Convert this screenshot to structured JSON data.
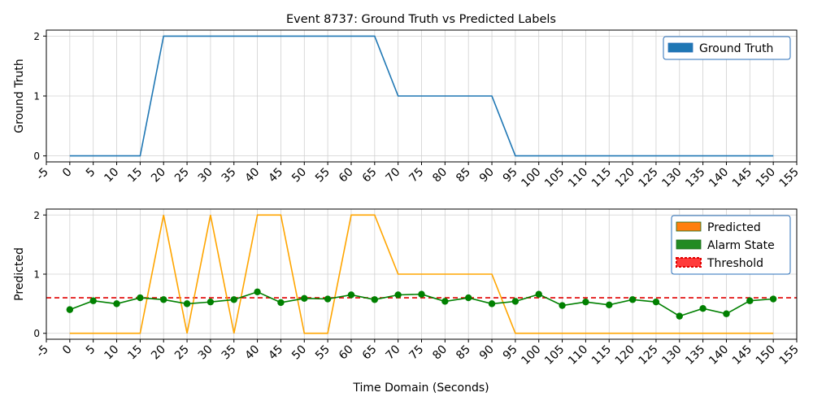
{
  "chart_data": [
    {
      "type": "line",
      "title": "Event 8737: Ground Truth vs Predicted Labels",
      "xlabel": "",
      "ylabel": "Ground Truth",
      "xlim": [
        -5,
        155
      ],
      "ylim": [
        -0.1,
        2.1
      ],
      "x_ticks": [
        -5,
        0,
        5,
        10,
        15,
        20,
        25,
        30,
        35,
        40,
        45,
        50,
        55,
        60,
        65,
        70,
        75,
        80,
        85,
        90,
        95,
        100,
        105,
        110,
        115,
        120,
        125,
        130,
        135,
        140,
        145,
        150,
        155
      ],
      "y_ticks": [
        0,
        1,
        2
      ],
      "grid": true,
      "legend_position": "top-right",
      "legend": [
        {
          "label": "Ground Truth",
          "color": "#1f77b4"
        }
      ],
      "series": [
        {
          "name": "Ground Truth",
          "color": "#1f77b4",
          "x": [
            0,
            5,
            10,
            15,
            20,
            25,
            30,
            35,
            40,
            45,
            50,
            55,
            60,
            65,
            70,
            75,
            80,
            85,
            90,
            95,
            100,
            105,
            110,
            115,
            120,
            125,
            130,
            135,
            140,
            145,
            150
          ],
          "values": [
            0,
            0,
            0,
            0,
            2,
            2,
            2,
            2,
            2,
            2,
            2,
            2,
            2,
            2,
            1,
            1,
            1,
            1,
            1,
            0,
            0,
            0,
            0,
            0,
            0,
            0,
            0,
            0,
            0,
            0,
            0
          ]
        }
      ]
    },
    {
      "type": "line",
      "title": "",
      "xlabel": "Time Domain (Seconds)",
      "ylabel": "Predicted",
      "xlim": [
        -5,
        155
      ],
      "ylim": [
        -0.1,
        2.1
      ],
      "x_ticks": [
        -5,
        0,
        5,
        10,
        15,
        20,
        25,
        30,
        35,
        40,
        45,
        50,
        55,
        60,
        65,
        70,
        75,
        80,
        85,
        90,
        95,
        100,
        105,
        110,
        115,
        120,
        125,
        130,
        135,
        140,
        145,
        150,
        155
      ],
      "y_ticks": [
        0,
        1,
        2
      ],
      "grid": true,
      "legend_position": "top-right",
      "legend": [
        {
          "label": "Predicted",
          "color": "#ff7f0e"
        },
        {
          "label": "Alarm State",
          "color": "#228b22"
        },
        {
          "label": "Threshold",
          "color": "#ff0000"
        }
      ],
      "threshold": 0.6,
      "series": [
        {
          "name": "Predicted",
          "color": "#ffa500",
          "x": [
            0,
            5,
            10,
            15,
            20,
            25,
            30,
            35,
            40,
            45,
            50,
            55,
            60,
            65,
            70,
            75,
            80,
            85,
            90,
            95,
            100,
            105,
            110,
            115,
            120,
            125,
            130,
            135,
            140,
            145,
            150
          ],
          "values": [
            0,
            0,
            0,
            0,
            2,
            0,
            2,
            0,
            2,
            2,
            0,
            0,
            2,
            2,
            1,
            1,
            1,
            1,
            1,
            0,
            0,
            0,
            0,
            0,
            0,
            0,
            0,
            0,
            0,
            0,
            0
          ]
        },
        {
          "name": "Alarm State",
          "color": "#008000",
          "x": [
            0,
            5,
            10,
            15,
            20,
            25,
            30,
            35,
            40,
            45,
            50,
            55,
            60,
            65,
            70,
            75,
            80,
            85,
            90,
            95,
            100,
            105,
            110,
            115,
            120,
            125,
            130,
            135,
            140,
            145,
            150
          ],
          "values": [
            0.4,
            0.55,
            0.5,
            0.6,
            0.57,
            0.5,
            0.53,
            0.57,
            0.7,
            0.52,
            0.59,
            0.58,
            0.65,
            0.57,
            0.65,
            0.66,
            0.54,
            0.6,
            0.5,
            0.54,
            0.66,
            0.47,
            0.53,
            0.48,
            0.57,
            0.53,
            0.29,
            0.42,
            0.33,
            0.55,
            0.58
          ]
        }
      ]
    }
  ]
}
